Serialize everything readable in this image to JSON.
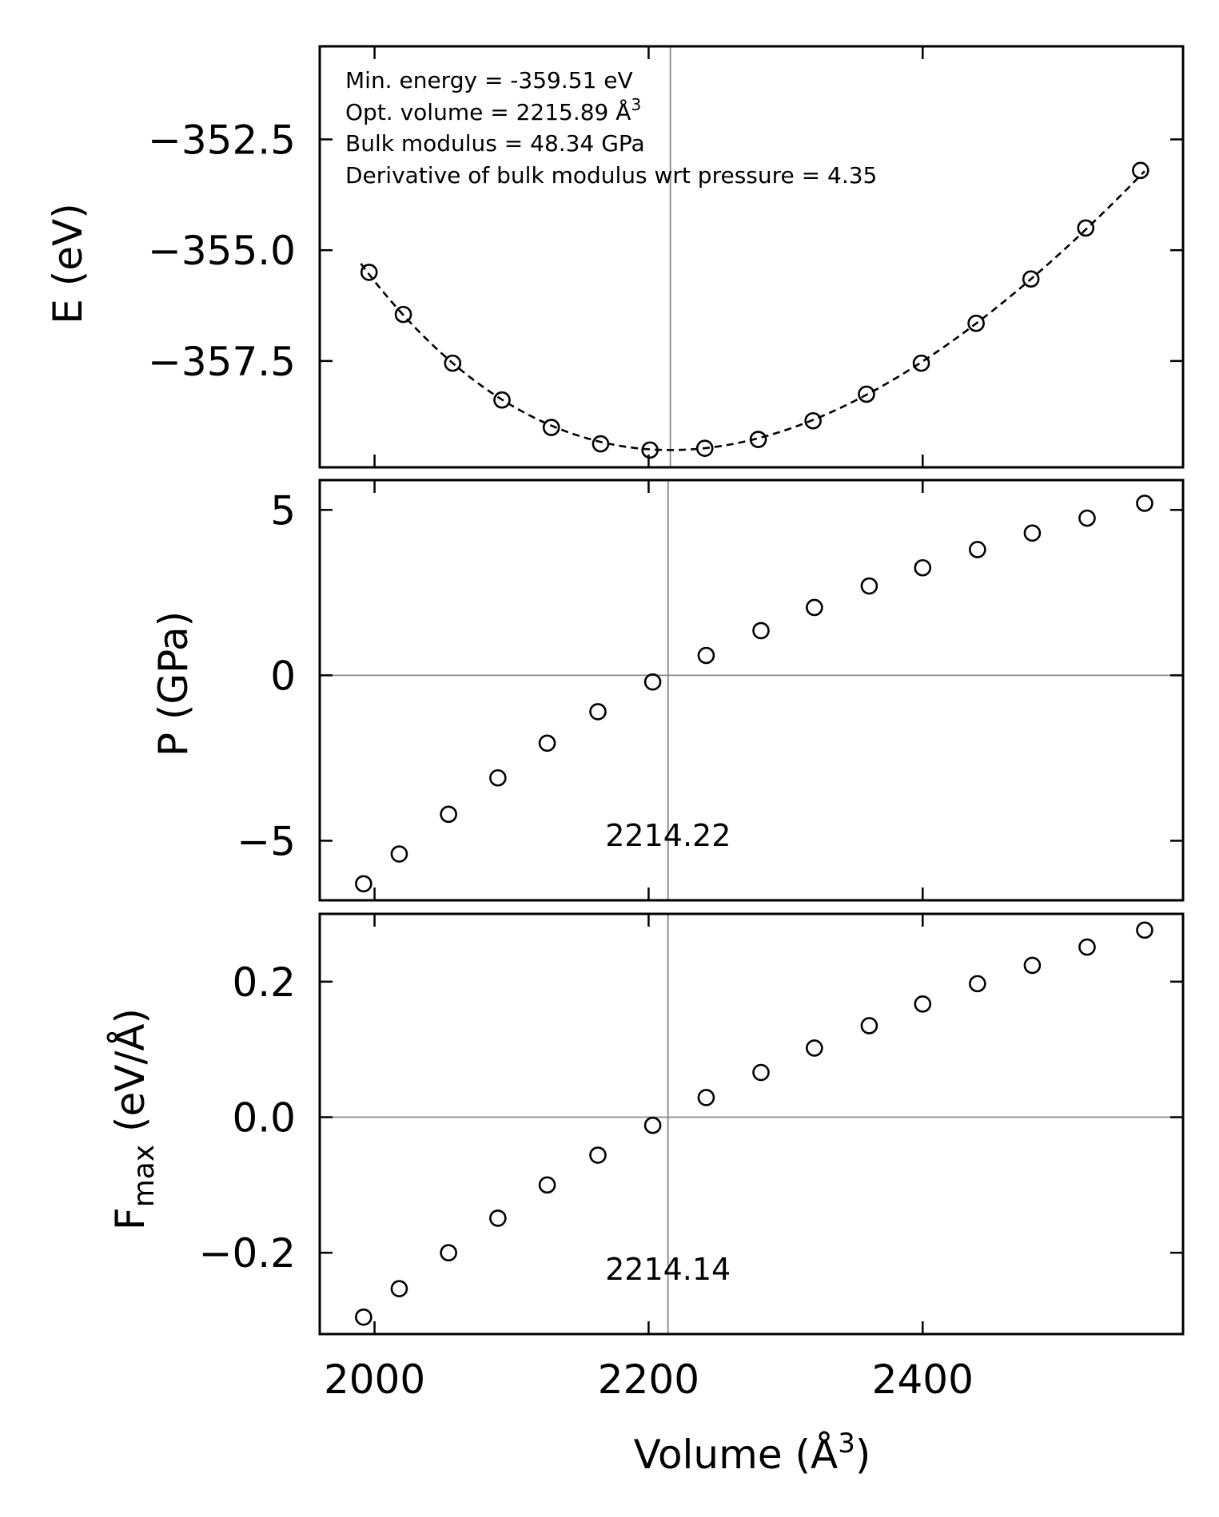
{
  "chart_data": [
    {
      "type": "scatter",
      "name": "energy",
      "ylabel": "E (eV)",
      "xlim": [
        1960,
        2590
      ],
      "ylim": [
        -359.9,
        -350.4
      ],
      "yticks": [
        -352.5,
        -355.0,
        -357.5
      ],
      "ytick_labels": [
        "−352.5",
        "−355.0",
        "−357.5"
      ],
      "x": [
        1996,
        2021,
        2057,
        2093,
        2129,
        2165,
        2201,
        2241,
        2280,
        2320,
        2359,
        2399,
        2439,
        2479,
        2519,
        2559
      ],
      "y": [
        -355.5,
        -356.45,
        -357.55,
        -358.38,
        -359.0,
        -359.37,
        -359.51,
        -359.47,
        -359.27,
        -358.85,
        -358.25,
        -357.55,
        -356.65,
        -355.65,
        -354.5,
        -353.2
      ],
      "fit": {
        "style": "dashed",
        "equation": "E0 + 9*V0*B0/16*((V0/V)^(2/3)-1)^3*B1 + 9*V0*B0/16*((V0/V)^(2/3)-1)^2*(6-4*(V0/V)^(2/3))",
        "E0": -359.51,
        "V0": 2215.89,
        "B0_GPa": 48.34,
        "B1": 4.35,
        "x_range": [
          1990,
          2562
        ]
      },
      "vline": 2215.89,
      "annotations": [
        "Min. energy = -359.51 eV",
        "Opt. volume = 2215.89 Å",
        "Bulk modulus = 48.34 GPa",
        "Derivative of bulk modulus wrt pressure = 4.35"
      ],
      "annotation_superscript": "3"
    },
    {
      "type": "scatter",
      "name": "pressure",
      "ylabel": "P (GPa)",
      "xlim": [
        1960,
        2590
      ],
      "ylim": [
        -6.8,
        5.9
      ],
      "yticks": [
        5,
        0,
        -5
      ],
      "ytick_labels": [
        "5",
        "0",
        "−5"
      ],
      "x": [
        1992,
        2018,
        2054,
        2090,
        2126,
        2163,
        2203,
        2242,
        2282,
        2321,
        2361,
        2400,
        2440,
        2480,
        2520,
        2562
      ],
      "y": [
        -6.3,
        -5.4,
        -4.2,
        -3.1,
        -2.05,
        -1.1,
        -0.2,
        0.6,
        1.35,
        2.05,
        2.7,
        3.25,
        3.8,
        4.3,
        4.75,
        5.2
      ],
      "hline": 0,
      "vline": 2214.22,
      "vline_label": "2214.22"
    },
    {
      "type": "scatter",
      "name": "force",
      "ylabel": "F",
      "ylabel_subscript": "max",
      "ylabel_suffix": " (eV/Å)",
      "xlabel": "Volume (Å",
      "xlabel_superscript": "3",
      "xlabel_suffix": ")",
      "xlim": [
        1960,
        2590
      ],
      "ylim": [
        -0.32,
        0.3
      ],
      "yticks": [
        0.2,
        0.0,
        -0.2
      ],
      "ytick_labels": [
        "0.2",
        "0.0",
        "−0.2"
      ],
      "xticks": [
        2000,
        2200,
        2400
      ],
      "xtick_labels": [
        "2000",
        "2200",
        "2400"
      ],
      "x": [
        1992,
        2018,
        2054,
        2090,
        2126,
        2163,
        2203,
        2242,
        2282,
        2321,
        2361,
        2400,
        2440,
        2480,
        2520,
        2562
      ],
      "y": [
        -0.295,
        -0.253,
        -0.2,
        -0.149,
        -0.1,
        -0.056,
        -0.012,
        0.029,
        0.066,
        0.102,
        0.135,
        0.167,
        0.197,
        0.224,
        0.251,
        0.276
      ],
      "hline": 0,
      "vline": 2214.14,
      "vline_label": "2214.14"
    }
  ]
}
